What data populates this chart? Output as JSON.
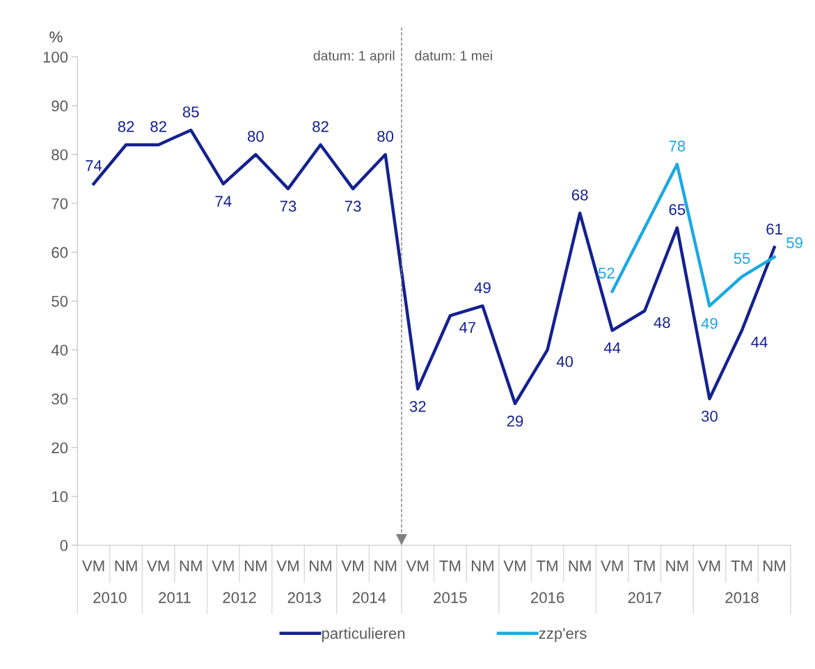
{
  "chart_data": {
    "type": "line",
    "ylabel": "%",
    "categories": [
      "VM",
      "NM",
      "VM",
      "NM",
      "VM",
      "NM",
      "VM",
      "NM",
      "VM",
      "NM",
      "VM",
      "TM",
      "NM",
      "VM",
      "TM",
      "NM",
      "VM",
      "TM",
      "NM",
      "VM",
      "TM",
      "NM"
    ],
    "series": [
      {
        "name": "particulieren",
        "color": "#14218f",
        "values": [
          74,
          82,
          82,
          85,
          74,
          80,
          73,
          82,
          73,
          80,
          32,
          47,
          49,
          29,
          40,
          68,
          44,
          48,
          65,
          30,
          44,
          61
        ],
        "value_labels": [
          "74",
          "82",
          "82",
          "85",
          "74",
          "80",
          "73",
          "82",
          "73",
          "80",
          "32",
          "47",
          "49",
          "29",
          "40",
          "68",
          "44",
          "48",
          "65",
          "30",
          "44",
          "61"
        ]
      },
      {
        "name": "zzp'ers",
        "color": "#1aa9e3",
        "values": [
          null,
          null,
          null,
          null,
          null,
          null,
          null,
          null,
          null,
          null,
          null,
          null,
          null,
          null,
          null,
          null,
          52,
          65,
          78,
          49,
          55,
          59
        ],
        "value_labels": [
          null,
          null,
          null,
          null,
          null,
          null,
          null,
          null,
          null,
          null,
          null,
          null,
          null,
          null,
          null,
          null,
          "52",
          null,
          "78",
          "49",
          "55",
          "59"
        ]
      }
    ],
    "ylim": [
      0,
      100
    ],
    "yticks": [
      0,
      10,
      20,
      30,
      40,
      50,
      60,
      70,
      80,
      90,
      100
    ],
    "annotations": [
      "datum: 1 april",
      "datum: 1 mei",
      "2010",
      "2011",
      "2012",
      "2013",
      "2014",
      "2015",
      "2016",
      "2017",
      "2018"
    ],
    "grid": false,
    "legend": "bottom",
    "marker": "none",
    "line_style": "solid"
  }
}
